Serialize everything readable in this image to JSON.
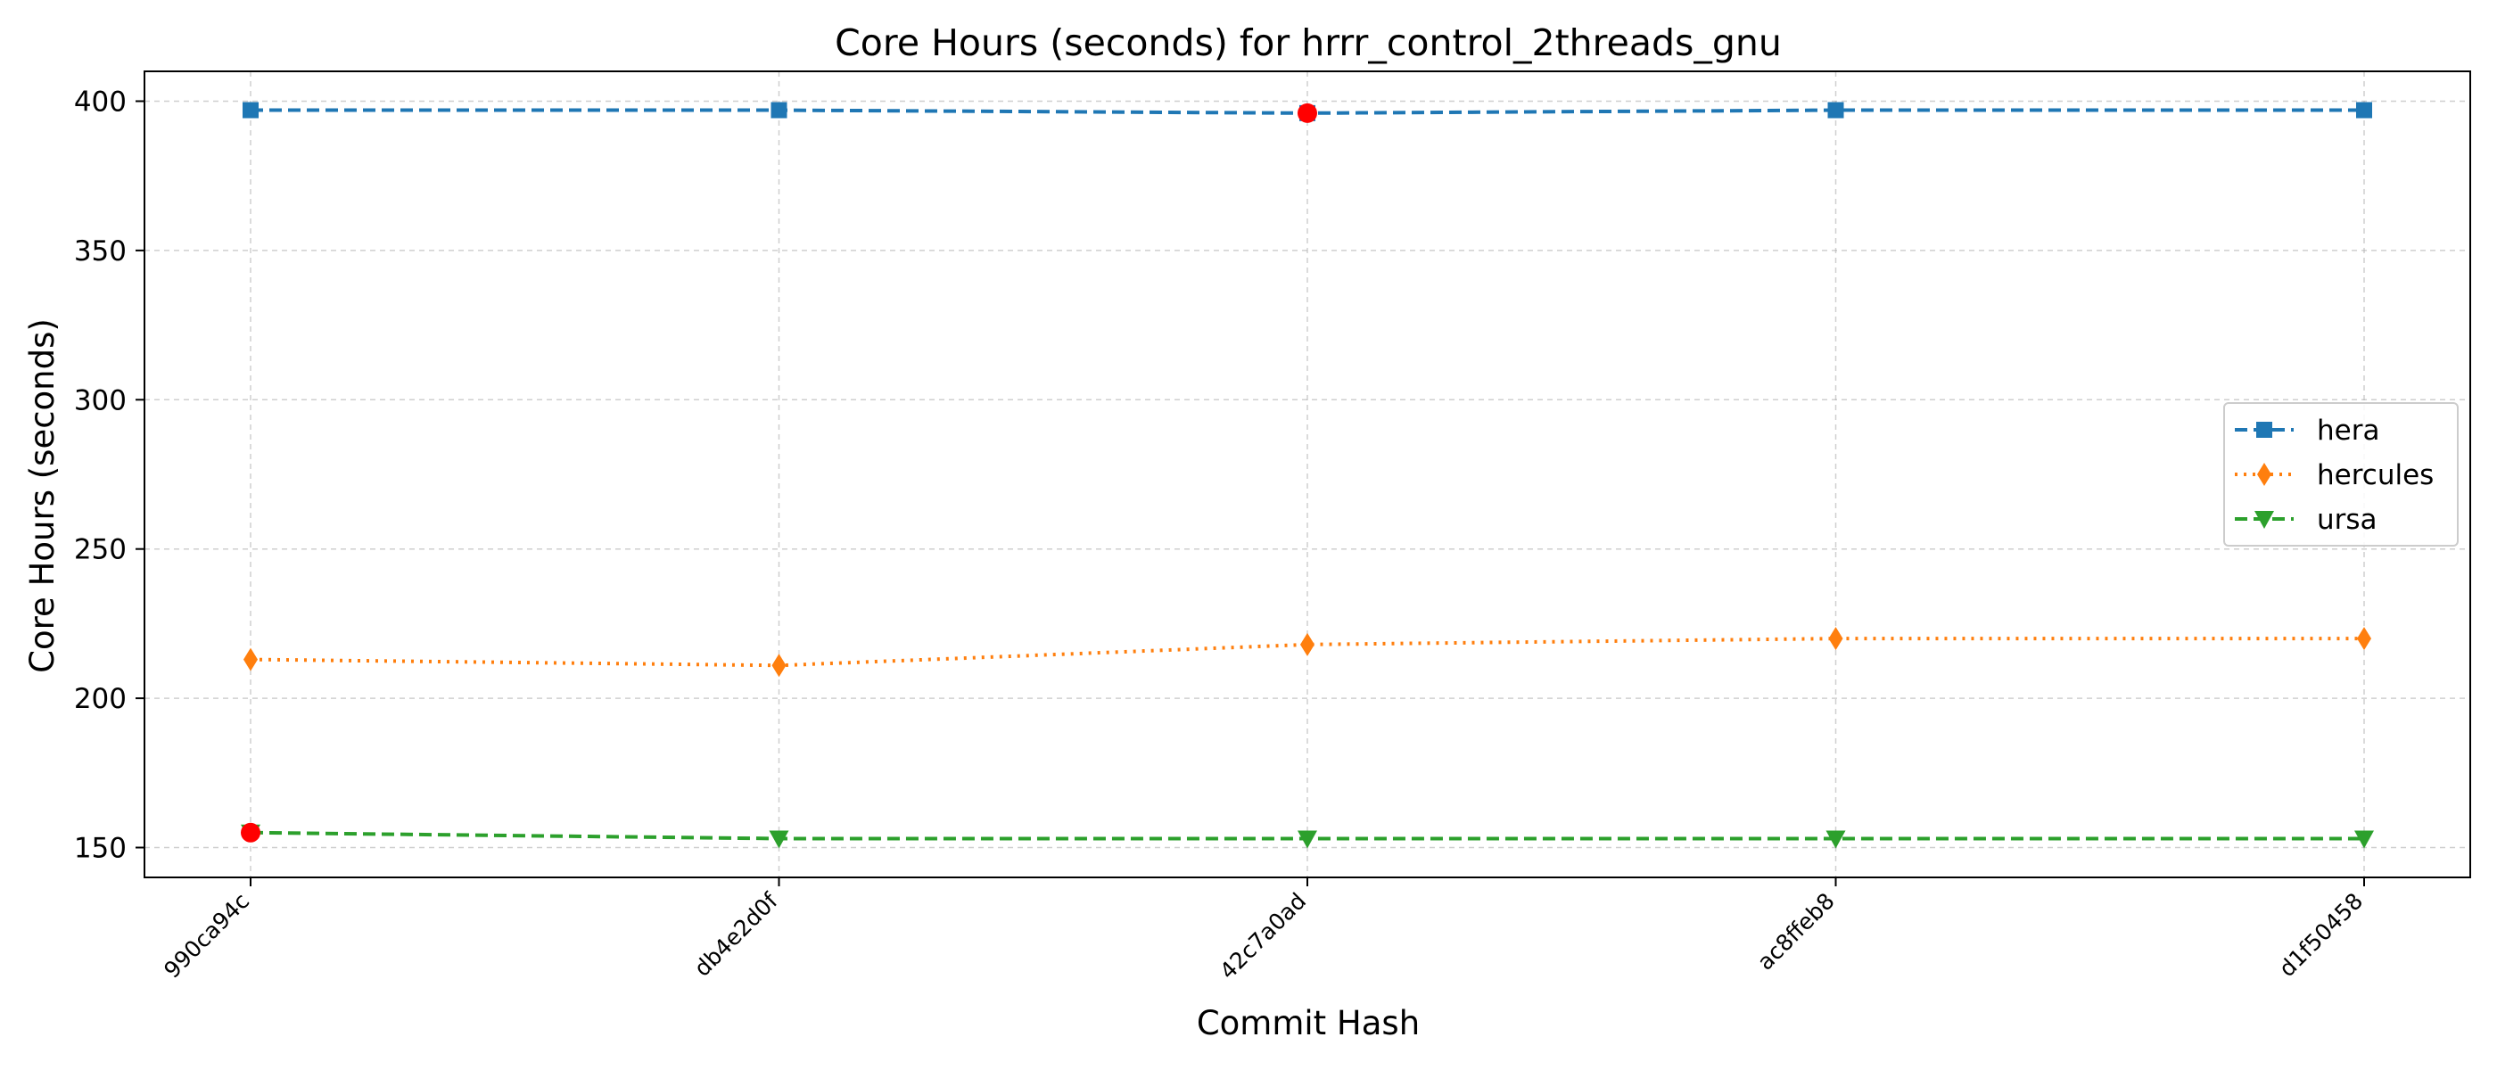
{
  "chart_data": {
    "type": "line",
    "title": "Core Hours (seconds) for hrrr_control_2threads_gnu",
    "xlabel": "Commit Hash",
    "ylabel": "Core Hours (seconds)",
    "categories": [
      "990ca94c",
      "db4e2d0f",
      "42c7a0ad",
      "ac8ffeb8",
      "d1f50458"
    ],
    "ylim": [
      140,
      410
    ],
    "yticks": [
      150,
      200,
      250,
      300,
      350,
      400
    ],
    "grid": true,
    "legend_position": "right",
    "series": [
      {
        "name": "hera",
        "values": [
          397,
          397,
          396,
          397,
          397
        ],
        "color": "#1f77b4",
        "marker": "square",
        "line_style": "dashed"
      },
      {
        "name": "hercules",
        "values": [
          213,
          211,
          218,
          220,
          220
        ],
        "color": "#ff7f0e",
        "marker": "thin-diamond",
        "line_style": "dotted"
      },
      {
        "name": "ursa",
        "values": [
          155,
          153,
          153,
          153,
          153
        ],
        "color": "#2ca02c",
        "marker": "triangle-down",
        "line_style": "dashed"
      }
    ],
    "highlights": [
      {
        "series": "hera",
        "category": "42c7a0ad",
        "value": 396,
        "color": "#ff0000"
      },
      {
        "series": "ursa",
        "category": "990ca94c",
        "value": 155,
        "color": "#ff0000"
      }
    ]
  }
}
